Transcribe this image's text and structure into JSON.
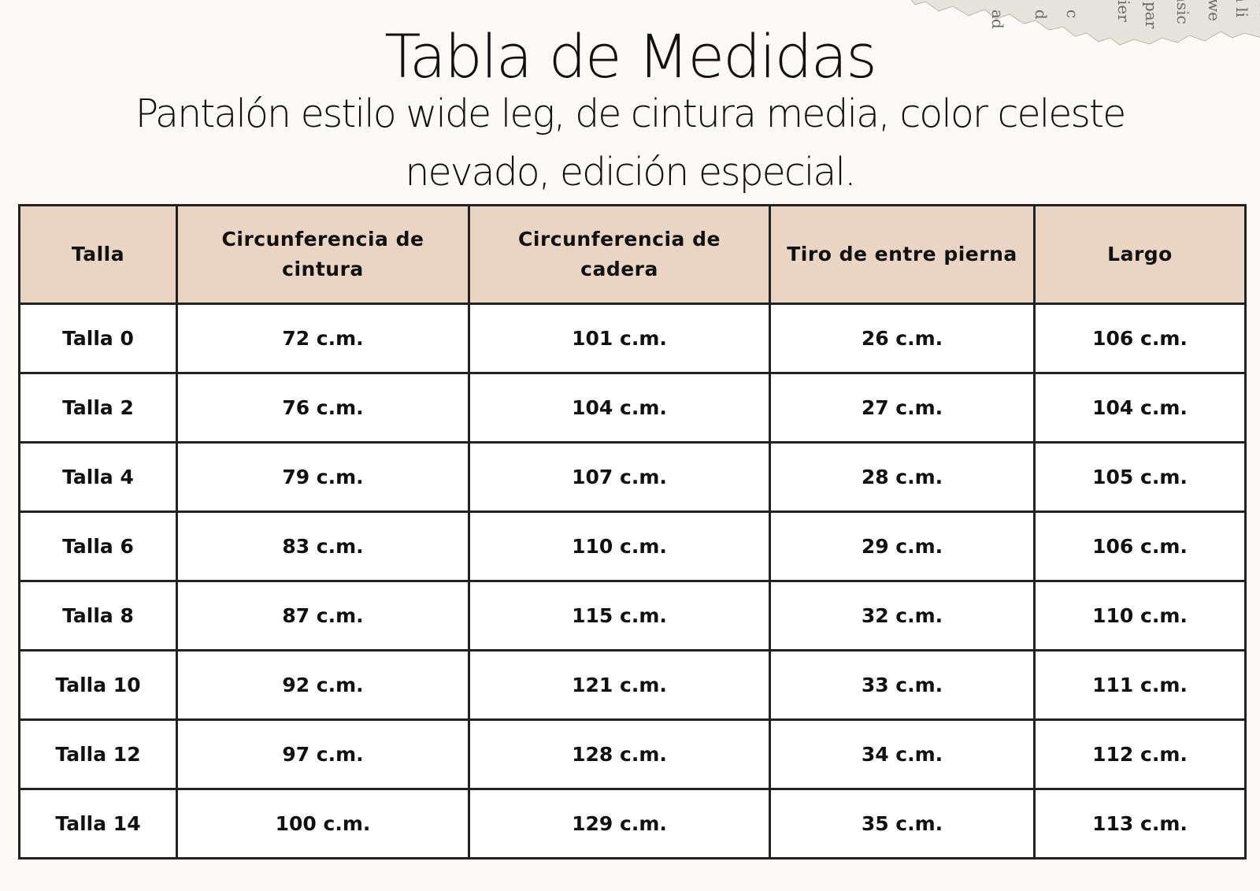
{
  "title": "Tabla de Medidas",
  "subtitle": "Pantalón estilo wide leg, de cintura media, color celeste nevado, edición especial.",
  "table": {
    "headers": [
      "Talla",
      "Circunferencia  de cintura",
      "Circunferencia de cadera",
      "Tiro de entre pierna",
      "Largo"
    ],
    "rows": [
      [
        "Talla 0",
        "72 c.m.",
        "101 c.m.",
        "26 c.m.",
        "106 c.m."
      ],
      [
        "Talla 2",
        "76 c.m.",
        "104 c.m.",
        "27 c.m.",
        "104 c.m."
      ],
      [
        "Talla 4",
        "79 c.m.",
        "107 c.m.",
        "28 c.m.",
        "105 c.m."
      ],
      [
        "Talla 6",
        "83 c.m.",
        "110 c.m.",
        "29 c.m.",
        "106 c.m."
      ],
      [
        "Talla 8",
        "87 c.m.",
        "115 c.m.",
        "32 c.m.",
        "110 c.m."
      ],
      [
        "Talla 10",
        "92 c.m.",
        "121 c.m.",
        "33 c.m.",
        "111 c.m."
      ],
      [
        "Talla 12",
        "97 c.m.",
        "128 c.m.",
        "34 c.m.",
        "112 c.m."
      ],
      [
        "Talla 14",
        "100 c.m.",
        "129 c.m.",
        "35 c.m.",
        "113 c.m."
      ]
    ]
  },
  "colors": {
    "header_background": "#ead5c4",
    "page_background": "#fbfaf6",
    "border": "#222222"
  },
  "decoration": {
    "corner_image": "torn-newspaper-scrap"
  }
}
